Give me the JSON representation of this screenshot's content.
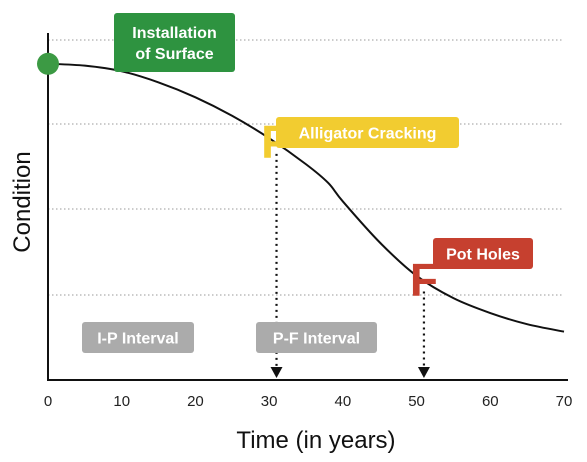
{
  "chart_data": {
    "type": "line",
    "title": "",
    "xlabel": "Time (in years)",
    "ylabel": "Condition",
    "xlim": [
      0,
      70
    ],
    "ylim": [
      0,
      100
    ],
    "x_ticks": [
      "0",
      "10",
      "20",
      "30",
      "40",
      "50",
      "60",
      "70"
    ],
    "grid": "horizontal dotted",
    "series": [
      {
        "x": [
          0,
          5,
          10,
          15,
          20,
          25,
          30,
          35,
          38,
          40,
          45,
          50,
          55,
          60,
          65,
          70
        ],
        "y": [
          85,
          84.5,
          83,
          80,
          76,
          71,
          65,
          58,
          53,
          48,
          37,
          28,
          22,
          18,
          15,
          13
        ]
      }
    ],
    "markers": [
      {
        "label": "P",
        "x": 31,
        "y": 64,
        "color": "#F2CC30"
      },
      {
        "label": "F",
        "x": 51,
        "y": 27,
        "color": "#C6402F"
      }
    ],
    "start_point": {
      "x": 0,
      "y": 85,
      "color": "#3C9A44"
    },
    "annotations": [
      {
        "text": [
          "Installation",
          "of Surface"
        ],
        "color": "#2E9340"
      },
      {
        "text": [
          "Alligator Cracking"
        ],
        "color": "#F2CC30"
      },
      {
        "text": [
          "Pot Holes"
        ],
        "color": "#C6402F"
      },
      {
        "text": [
          "I-P Interval"
        ],
        "color": "#ABABAB"
      },
      {
        "text": [
          "P-F Interval"
        ],
        "color": "#ABABAB"
      }
    ]
  }
}
